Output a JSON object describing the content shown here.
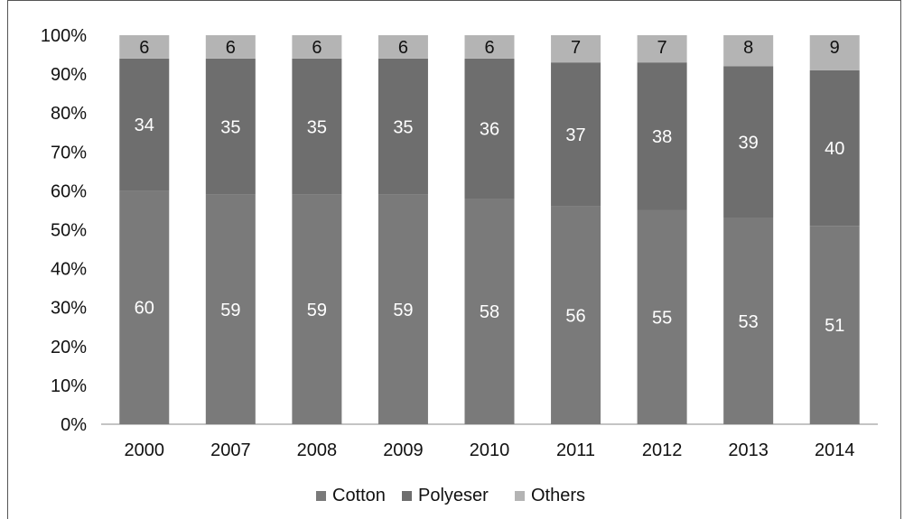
{
  "chart_data": {
    "type": "bar",
    "stacked": true,
    "percent": true,
    "categories": [
      "2000",
      "2007",
      "2008",
      "2009",
      "2010",
      "2011",
      "2012",
      "2013",
      "2014"
    ],
    "series": [
      {
        "name": "Cotton",
        "values": [
          60,
          59,
          59,
          59,
          58,
          56,
          55,
          53,
          51
        ],
        "color": "#7a7a7a"
      },
      {
        "name": "Polyeser",
        "values": [
          34,
          35,
          35,
          35,
          36,
          37,
          38,
          39,
          40
        ],
        "color": "#6e6e6e"
      },
      {
        "name": "Others",
        "values": [
          6,
          6,
          6,
          6,
          6,
          7,
          7,
          8,
          9
        ],
        "color": "#b4b4b4"
      }
    ],
    "ylim": [
      0,
      100
    ],
    "yticks": [
      "0%",
      "10%",
      "20%",
      "30%",
      "40%",
      "50%",
      "60%",
      "70%",
      "80%",
      "90%",
      "100%"
    ],
    "label_colors": {
      "Cotton": "#ffffff",
      "Polyeser": "#ffffff",
      "Others": "#111111"
    },
    "legend_position": "bottom",
    "grid": false
  }
}
